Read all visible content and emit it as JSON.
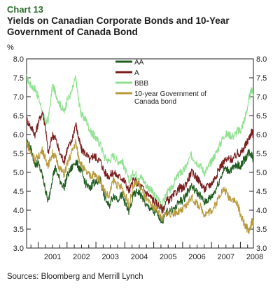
{
  "header": {
    "chart_number": "Chart 13",
    "title": "Yields on Canadian Corporate Bonds and 10-Year Government of Canada Bond"
  },
  "unit": "%",
  "source": "Sources: Bloomberg and Merrill Lynch",
  "colors": {
    "AA": "#1f5c1f",
    "A": "#7a1e1e",
    "BBB": "#8fe08f",
    "GOC10": "#b89a3c"
  },
  "chart_data": {
    "type": "line",
    "title": "Yields on Canadian Corporate Bonds and 10-Year Government of Canada Bond",
    "ylabel": "%",
    "xlabel": "",
    "ylim": [
      3.0,
      8.0
    ],
    "xlim": [
      2000.6,
      2008.45
    ],
    "y_ticks": [
      3.0,
      3.5,
      4.0,
      4.5,
      5.0,
      5.5,
      6.0,
      6.5,
      7.0,
      7.5,
      8.0
    ],
    "y_tick_labels": [
      "3.0",
      "3.5",
      "4.0",
      "4.5",
      "5.0",
      "5.5",
      "6.0",
      "6.5",
      "7.0",
      "7.5",
      "8.0"
    ],
    "x_tick_labels": [
      "2001",
      "2002",
      "2003",
      "2004",
      "2005",
      "2006",
      "2007",
      "2008"
    ],
    "grid": false,
    "legend_position": "top-center",
    "series": [
      {
        "name": "AA",
        "color": "#1f5c1f",
        "x": [
          2000.6,
          2000.75,
          2000.9,
          2001.0,
          2001.15,
          2001.25,
          2001.35,
          2001.5,
          2001.6,
          2001.75,
          2001.9,
          2002.0,
          2002.15,
          2002.3,
          2002.4,
          2002.5,
          2002.65,
          2002.8,
          2002.9,
          2003.0,
          2003.15,
          2003.3,
          2003.45,
          2003.6,
          2003.75,
          2003.9,
          2004.0,
          2004.15,
          2004.3,
          2004.45,
          2004.6,
          2004.75,
          2004.9,
          2005.0,
          2005.15,
          2005.3,
          2005.45,
          2005.6,
          2005.75,
          2005.9,
          2006.0,
          2006.15,
          2006.3,
          2006.45,
          2006.6,
          2006.75,
          2006.9,
          2007.0,
          2007.15,
          2007.3,
          2007.45,
          2007.6,
          2007.75,
          2007.9,
          2008.0,
          2008.1,
          2008.2,
          2008.3,
          2008.4,
          2008.45
        ],
        "y": [
          5.85,
          5.6,
          5.2,
          5.25,
          4.9,
          4.55,
          4.2,
          4.9,
          5.1,
          4.8,
          4.6,
          4.9,
          5.1,
          5.3,
          5.15,
          5.0,
          4.7,
          4.55,
          4.75,
          4.7,
          4.8,
          4.35,
          4.1,
          4.4,
          4.3,
          4.4,
          4.2,
          3.95,
          4.4,
          4.5,
          4.35,
          4.1,
          4.05,
          3.95,
          3.9,
          3.7,
          3.95,
          4.0,
          4.05,
          4.25,
          4.25,
          4.45,
          4.65,
          4.5,
          4.4,
          4.2,
          4.3,
          4.35,
          4.55,
          4.85,
          5.1,
          5.05,
          5.1,
          5.2,
          5.15,
          5.3,
          5.4,
          5.55,
          5.45,
          5.35
        ]
      },
      {
        "name": "A",
        "color": "#7a1e1e",
        "x": [
          2000.6,
          2000.75,
          2000.9,
          2001.0,
          2001.15,
          2001.25,
          2001.35,
          2001.5,
          2001.6,
          2001.75,
          2001.9,
          2002.0,
          2002.15,
          2002.3,
          2002.4,
          2002.5,
          2002.65,
          2002.8,
          2002.9,
          2003.0,
          2003.15,
          2003.3,
          2003.45,
          2003.6,
          2003.75,
          2003.9,
          2004.0,
          2004.15,
          2004.3,
          2004.45,
          2004.6,
          2004.75,
          2004.9,
          2005.0,
          2005.15,
          2005.3,
          2005.45,
          2005.6,
          2005.75,
          2005.9,
          2006.0,
          2006.15,
          2006.3,
          2006.45,
          2006.6,
          2006.75,
          2006.9,
          2007.0,
          2007.15,
          2007.3,
          2007.45,
          2007.6,
          2007.75,
          2007.9,
          2008.0,
          2008.1,
          2008.2,
          2008.3,
          2008.4,
          2008.45
        ],
        "y": [
          6.4,
          6.2,
          6.0,
          6.3,
          6.6,
          6.2,
          5.5,
          6.0,
          5.9,
          5.5,
          5.3,
          5.6,
          5.8,
          6.3,
          5.9,
          5.6,
          5.5,
          5.3,
          5.45,
          5.4,
          5.3,
          5.0,
          4.9,
          5.0,
          4.9,
          4.85,
          4.75,
          4.5,
          4.8,
          4.7,
          4.6,
          4.45,
          4.35,
          4.25,
          4.15,
          4.0,
          4.25,
          4.3,
          4.45,
          4.6,
          4.55,
          4.75,
          5.0,
          4.9,
          4.75,
          4.55,
          4.65,
          4.7,
          4.9,
          5.15,
          5.3,
          5.35,
          5.35,
          5.5,
          5.5,
          5.6,
          5.75,
          5.9,
          6.1,
          5.95
        ]
      },
      {
        "name": "BBB",
        "color": "#8fe08f",
        "x": [
          2000.6,
          2000.75,
          2000.9,
          2001.0,
          2001.15,
          2001.25,
          2001.35,
          2001.5,
          2001.6,
          2001.75,
          2001.9,
          2002.0,
          2002.15,
          2002.3,
          2002.4,
          2002.5,
          2002.65,
          2002.8,
          2002.9,
          2003.0,
          2003.15,
          2003.3,
          2003.45,
          2003.6,
          2003.75,
          2003.9,
          2004.0,
          2004.15,
          2004.3,
          2004.45,
          2004.6,
          2004.75,
          2004.9,
          2005.0,
          2005.15,
          2005.3,
          2005.45,
          2005.6,
          2005.75,
          2005.9,
          2006.0,
          2006.15,
          2006.3,
          2006.45,
          2006.6,
          2006.75,
          2006.9,
          2007.0,
          2007.15,
          2007.3,
          2007.45,
          2007.6,
          2007.75,
          2007.9,
          2008.0,
          2008.1,
          2008.2,
          2008.3,
          2008.4,
          2008.45
        ],
        "y": [
          7.5,
          7.3,
          7.2,
          7.0,
          6.6,
          6.3,
          6.4,
          7.3,
          7.1,
          6.8,
          6.6,
          6.9,
          7.1,
          7.5,
          6.9,
          6.5,
          6.4,
          6.1,
          6.0,
          5.9,
          5.75,
          5.4,
          5.3,
          5.45,
          5.3,
          5.3,
          5.1,
          4.75,
          5.0,
          4.9,
          4.85,
          4.65,
          4.55,
          4.4,
          4.3,
          4.15,
          4.45,
          4.55,
          4.8,
          5.0,
          5.0,
          5.2,
          5.45,
          5.3,
          5.2,
          5.0,
          5.15,
          5.3,
          5.5,
          5.75,
          6.0,
          6.0,
          5.95,
          6.1,
          6.1,
          6.3,
          6.55,
          6.95,
          7.2,
          7.05
        ]
      },
      {
        "name": "10-year Government of Canada bond",
        "color": "#b89a3c",
        "x": [
          2000.6,
          2000.75,
          2000.9,
          2001.0,
          2001.15,
          2001.25,
          2001.35,
          2001.5,
          2001.6,
          2001.75,
          2001.9,
          2002.0,
          2002.15,
          2002.3,
          2002.4,
          2002.5,
          2002.65,
          2002.8,
          2002.9,
          2003.0,
          2003.15,
          2003.3,
          2003.45,
          2003.6,
          2003.75,
          2003.9,
          2004.0,
          2004.15,
          2004.3,
          2004.45,
          2004.6,
          2004.75,
          2004.9,
          2005.0,
          2005.15,
          2005.3,
          2005.45,
          2005.6,
          2005.75,
          2005.9,
          2006.0,
          2006.15,
          2006.3,
          2006.45,
          2006.6,
          2006.75,
          2006.9,
          2007.0,
          2007.15,
          2007.3,
          2007.45,
          2007.6,
          2007.75,
          2007.9,
          2008.0,
          2008.1,
          2008.2,
          2008.3,
          2008.4,
          2008.45
        ],
        "y": [
          5.8,
          5.5,
          5.35,
          5.4,
          5.6,
          5.35,
          5.2,
          5.5,
          5.4,
          5.1,
          4.95,
          5.2,
          5.5,
          5.8,
          5.4,
          5.2,
          5.0,
          4.9,
          4.95,
          4.9,
          4.8,
          4.5,
          4.35,
          4.8,
          4.65,
          4.6,
          4.4,
          4.15,
          4.65,
          4.75,
          4.5,
          4.25,
          4.15,
          4.05,
          4.0,
          3.75,
          3.95,
          3.9,
          3.95,
          3.95,
          4.0,
          4.15,
          4.35,
          4.2,
          4.1,
          3.9,
          3.95,
          4.0,
          4.15,
          4.45,
          4.55,
          4.35,
          4.3,
          4.15,
          3.9,
          3.7,
          3.55,
          3.45,
          3.7,
          3.65
        ]
      }
    ]
  }
}
